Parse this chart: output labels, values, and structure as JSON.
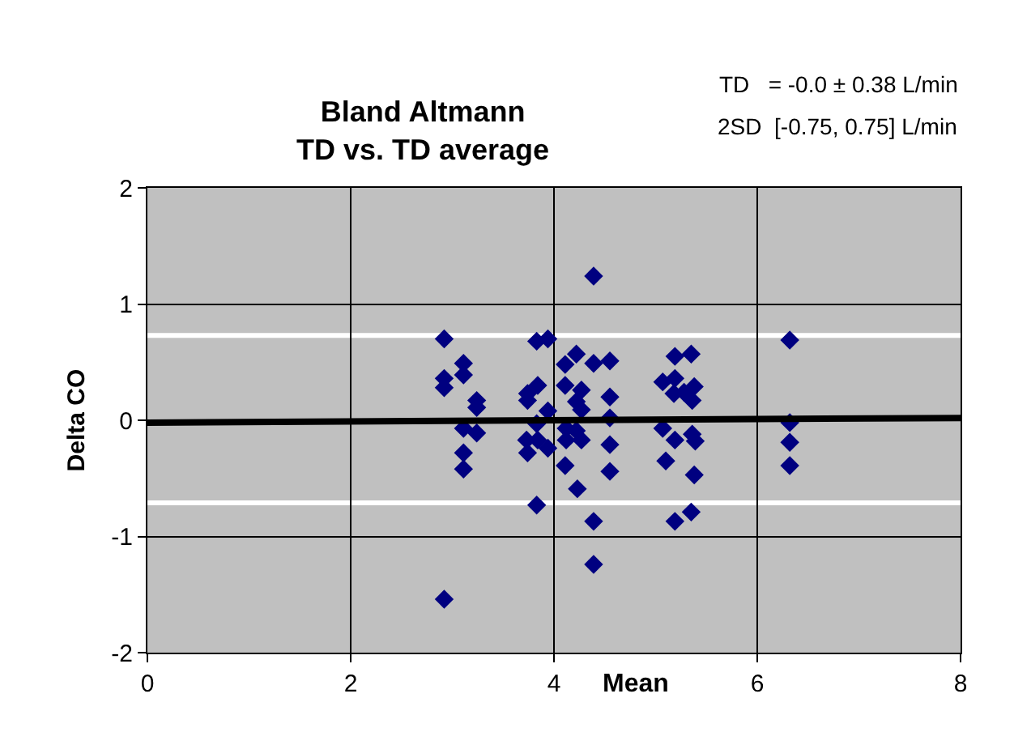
{
  "chart_data": {
    "type": "scatter",
    "title": "Bland Altmann\nTD vs. TD average",
    "xlabel": "Mean",
    "ylabel": "Delta CO",
    "annotations": [
      "TD   = -0.0 ± 0.38 L/min",
      "2SD  [-0.75, 0.75] L/min"
    ],
    "series": [
      {
        "color": "#000080",
        "marker": "diamond",
        "x": [
          2.92,
          2.92,
          2.92,
          3.11,
          3.11,
          3.24,
          3.24,
          3.11,
          3.24,
          3.11,
          3.11,
          2.92,
          4.39,
          3.94,
          3.83,
          4.22,
          4.11,
          4.39,
          4.55,
          4.11,
          4.27,
          3.84,
          3.74,
          3.74,
          4.55,
          4.22,
          4.27,
          3.94,
          4.55,
          3.83,
          4.12,
          4.22,
          3.73,
          3.84,
          3.94,
          3.74,
          4.12,
          4.27,
          4.55,
          4.11,
          4.55,
          4.23,
          3.83,
          4.39,
          4.39,
          5.19,
          5.35,
          5.07,
          5.19,
          5.18,
          5.38,
          5.36,
          5.28,
          5.07,
          5.19,
          5.36,
          5.39,
          5.1,
          5.38,
          5.35,
          5.19,
          6.32,
          6.32,
          6.32,
          6.32
        ],
        "values": [
          0.7,
          0.36,
          0.28,
          0.49,
          0.39,
          0.17,
          0.11,
          -0.07,
          -0.11,
          -0.28,
          -0.42,
          -1.54,
          1.24,
          0.7,
          0.68,
          0.57,
          0.48,
          0.49,
          0.51,
          0.3,
          0.26,
          0.3,
          0.23,
          0.17,
          0.2,
          0.16,
          0.09,
          0.08,
          0.02,
          -0.03,
          -0.07,
          -0.09,
          -0.17,
          -0.17,
          -0.24,
          -0.28,
          -0.17,
          -0.17,
          -0.21,
          -0.39,
          -0.44,
          -0.59,
          -0.73,
          -0.87,
          -1.24,
          0.55,
          0.57,
          0.33,
          0.36,
          0.23,
          0.29,
          0.17,
          0.24,
          -0.07,
          -0.17,
          -0.12,
          -0.18,
          -0.35,
          -0.47,
          -0.79,
          -0.87,
          0.69,
          -0.02,
          -0.19,
          -0.39
        ]
      },
      {
        "type": "line",
        "color": "#000000",
        "marker": "none",
        "line_style": "solid",
        "x": [
          0,
          8
        ],
        "values": [
          -0.02,
          0.02
        ]
      }
    ],
    "ref_lines": [
      {
        "axis": "y",
        "value": 0.73,
        "color": "#ffffff",
        "line_style": "solid"
      },
      {
        "axis": "y",
        "value": -0.71,
        "color": "#ffffff",
        "line_style": "solid"
      }
    ],
    "xlim": [
      0,
      8
    ],
    "xticks": [
      0,
      2,
      4,
      6,
      8
    ],
    "ylim": [
      -2,
      2
    ],
    "yticks": [
      -2,
      -1,
      0,
      1,
      2
    ],
    "grid": true
  }
}
